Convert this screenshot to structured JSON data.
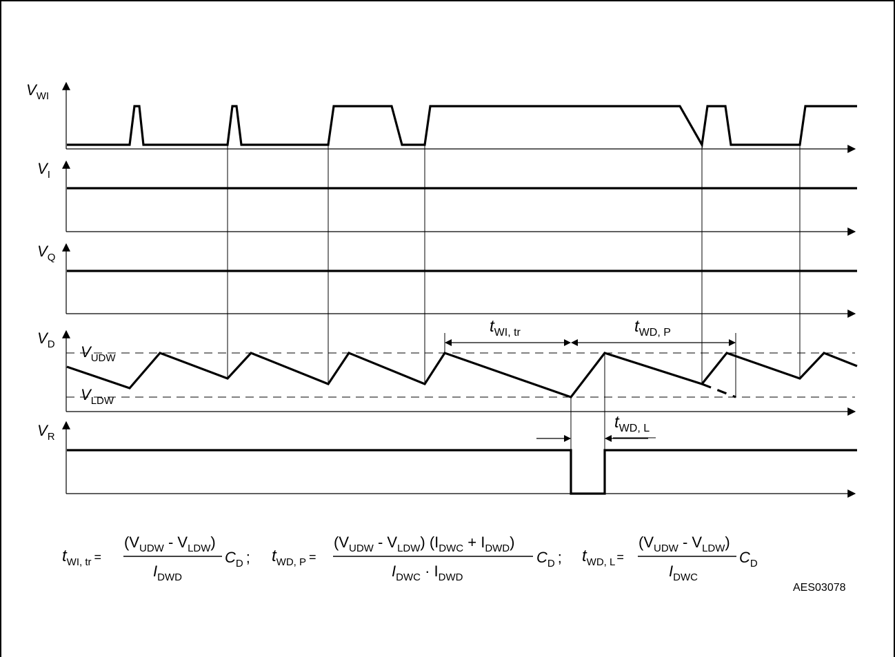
{
  "signals": {
    "wi": {
      "base": "V",
      "sub": "WI"
    },
    "i": {
      "base": "V",
      "sub": "I"
    },
    "q": {
      "base": "V",
      "sub": "Q"
    },
    "d": {
      "base": "V",
      "sub": "D"
    },
    "r": {
      "base": "V",
      "sub": "R"
    }
  },
  "levels": {
    "udw": {
      "base": "V",
      "sub": "UDW"
    },
    "ldw": {
      "base": "V",
      "sub": "LDW"
    }
  },
  "intervals": {
    "wi_tr": {
      "base": "t",
      "sub": "WI, tr"
    },
    "wd_p": {
      "base": "t",
      "sub": "WD, P"
    },
    "wd_l": {
      "base": "t",
      "sub": "WD, L"
    }
  },
  "formulas": {
    "f1": {
      "lhs_base": "t",
      "lhs_sub": "WI, tr",
      "eq": "=",
      "num": [
        "(V",
        "UDW",
        " - V",
        "LDW",
        ")"
      ],
      "den": [
        "I",
        "DWD"
      ],
      "tail_base": "C",
      "tail_sub": "D",
      "sep": ";"
    },
    "f2": {
      "lhs_base": "t",
      "lhs_sub": "WD, P",
      "eq": "=",
      "num": [
        "(V",
        "UDW",
        " - V",
        "LDW",
        ") (I",
        "DWC",
        " + I",
        "DWD",
        ")"
      ],
      "den": [
        "I",
        "DWC",
        " · I",
        "DWD"
      ],
      "tail_base": "C",
      "tail_sub": "D",
      "sep": ";"
    },
    "f3": {
      "lhs_base": "t",
      "lhs_sub": "WD, L",
      "eq": "=",
      "num": [
        "(V",
        "UDW",
        " - V",
        "LDW",
        ")"
      ],
      "den": [
        "I",
        "DWC"
      ],
      "tail_base": "C",
      "tail_sub": "D"
    }
  },
  "figure_id": "AES03078"
}
